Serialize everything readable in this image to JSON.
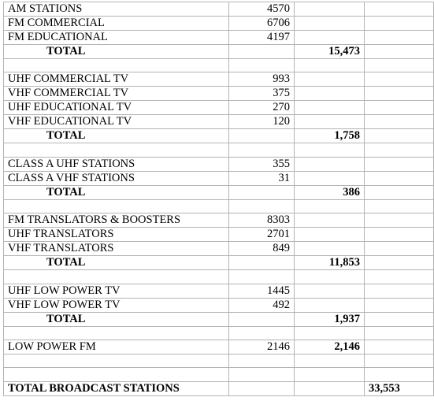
{
  "sections": [
    {
      "rows": [
        {
          "label": "AM STATIONS",
          "count": "4570"
        },
        {
          "label": "FM COMMERCIAL",
          "count": "6706"
        },
        {
          "label": "FM EDUCATIONAL",
          "count": "4197"
        }
      ],
      "total_label": "TOTAL",
      "total": "15,473"
    },
    {
      "rows": [
        {
          "label": "UHF COMMERCIAL TV",
          "count": "993"
        },
        {
          "label": "VHF COMMERCIAL TV",
          "count": "375"
        },
        {
          "label": "UHF EDUCATIONAL TV",
          "count": "270"
        },
        {
          "label": "VHF EDUCATIONAL TV",
          "count": "120"
        }
      ],
      "total_label": "TOTAL",
      "total": "1,758"
    },
    {
      "rows": [
        {
          "label": "CLASS A UHF STATIONS",
          "count": "355"
        },
        {
          "label": "CLASS A VHF STATIONS",
          "count": "31"
        }
      ],
      "total_label": "TOTAL",
      "total": "386"
    },
    {
      "rows": [
        {
          "label": "FM TRANSLATORS & BOOSTERS",
          "count": "8303"
        },
        {
          "label": "UHF TRANSLATORS",
          "count": "2701"
        },
        {
          "label": "VHF TRANSLATORS",
          "count": "849"
        }
      ],
      "total_label": "TOTAL",
      "total": "11,853"
    },
    {
      "rows": [
        {
          "label": "UHF LOW POWER TV",
          "count": "1445"
        },
        {
          "label": "VHF LOW POWER TV",
          "count": "492"
        }
      ],
      "total_label": "TOTAL",
      "total": "1,937"
    }
  ],
  "low_power_fm": {
    "label": "LOW POWER FM",
    "count": "2146",
    "total": "2,146"
  },
  "grand_total": {
    "label": "TOTAL BROADCAST STATIONS",
    "value": "33,553"
  }
}
